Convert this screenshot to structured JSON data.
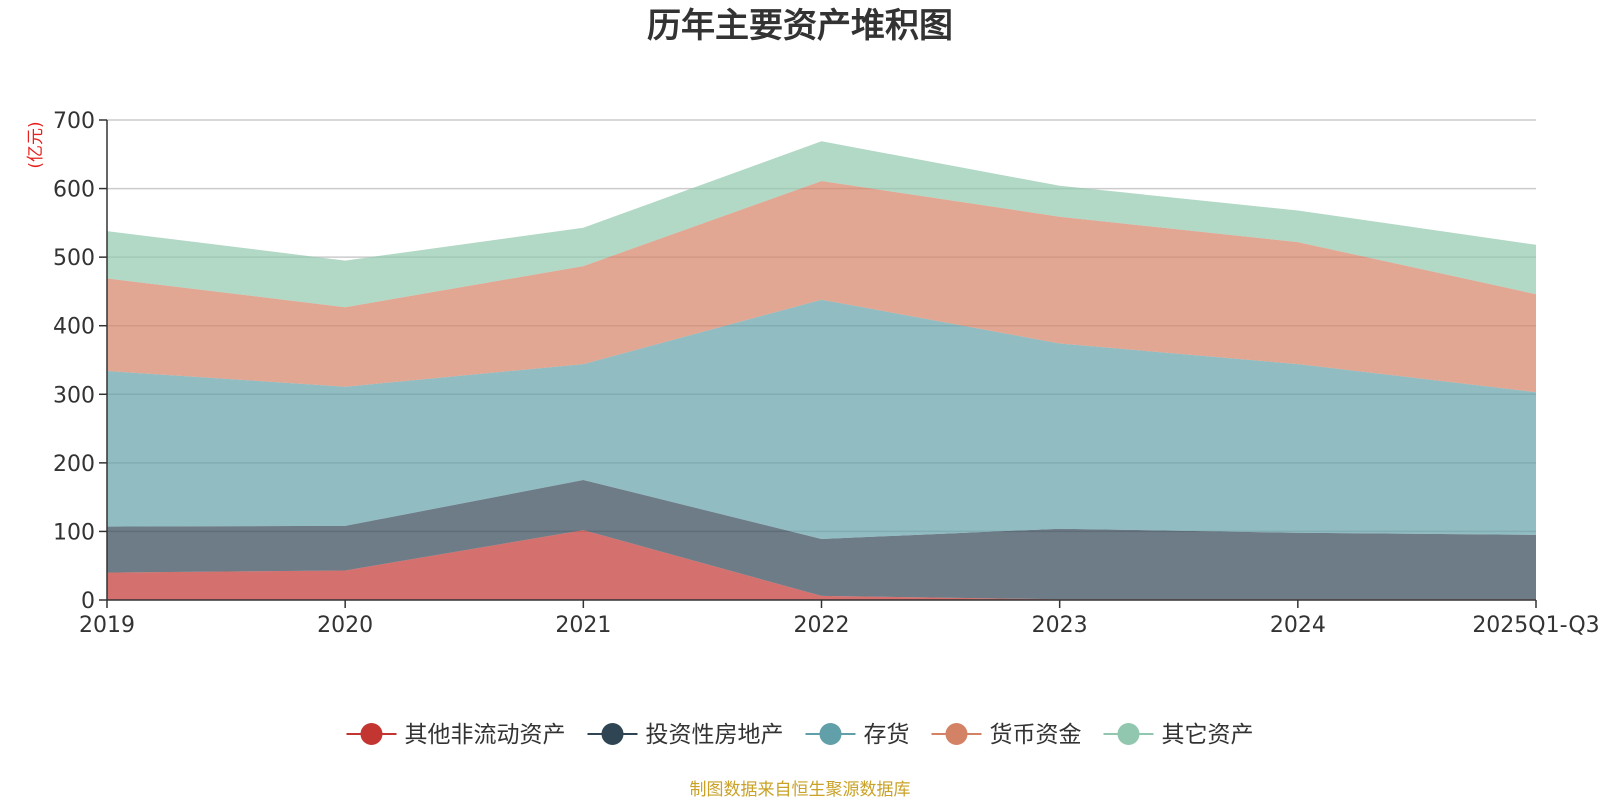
{
  "chart_data": {
    "type": "area",
    "stacked": true,
    "title": "历年主要资产堆积图",
    "unit_label": "(亿元)",
    "categories": [
      "2019",
      "2020",
      "2021",
      "2022",
      "2023",
      "2024",
      "2025Q1-Q3"
    ],
    "y_ticks": [
      "0",
      "100",
      "200",
      "300",
      "400",
      "500",
      "600",
      "700"
    ],
    "ylim": [
      0,
      700
    ],
    "grid": true,
    "legend_position": "bottom",
    "series": [
      {
        "name": "其他非流动资产",
        "color": "#c23531",
        "values": [
          40,
          43,
          102,
          6,
          1,
          1,
          1
        ]
      },
      {
        "name": "投资性房地产",
        "color": "#2f4554",
        "values": [
          67,
          65,
          73,
          83,
          103,
          97,
          94
        ]
      },
      {
        "name": "存货",
        "color": "#61a0a8",
        "values": [
          227,
          203,
          169,
          349,
          270,
          246,
          208
        ]
      },
      {
        "name": "货币资金",
        "color": "#d48265",
        "values": [
          135,
          116,
          143,
          173,
          185,
          178,
          143
        ]
      },
      {
        "name": "其它资产",
        "color": "#91c7ae",
        "values": [
          69,
          68,
          56,
          58,
          45,
          46,
          72
        ]
      }
    ],
    "source": "制图数据来自恒生聚源数据库"
  }
}
